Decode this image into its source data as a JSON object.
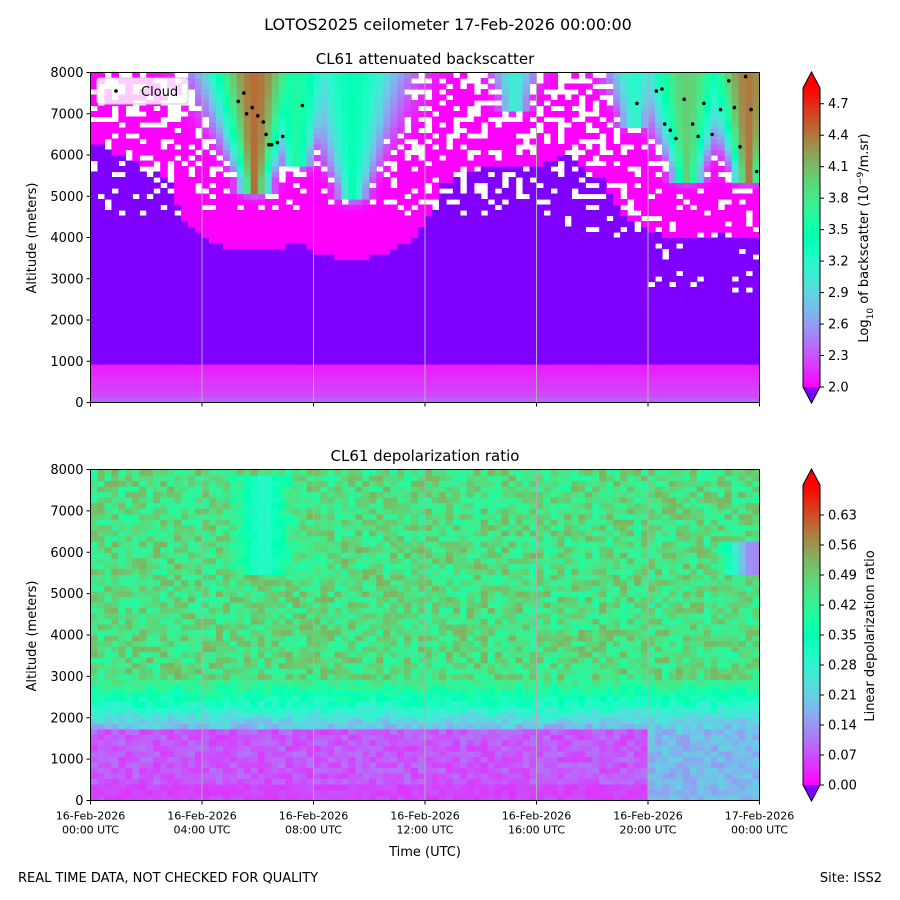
{
  "figure": {
    "suptitle": "LOTOS2025 ceilometer 17-Feb-2026 00:00:00",
    "footer_left": "REAL TIME DATA, NOT CHECKED FOR QUALITY",
    "footer_right": "Site: ISS2",
    "colormap": "rainbow",
    "under_color": "#8000ff",
    "over_color": "#ff0000"
  },
  "chart_data": [
    {
      "type": "heatmap",
      "title": "CL61 attenuated backscatter",
      "ylabel": "Altitude (meters)",
      "xlabel": "",
      "xlim": [
        0,
        24
      ],
      "ylim": [
        0,
        8000
      ],
      "y_ticks": [
        0,
        1000,
        2000,
        3000,
        4000,
        5000,
        6000,
        7000,
        8000
      ],
      "x_ticks": [
        {
          "value": 0,
          "line1": "16-Feb-2026",
          "line2": "00:00 UTC"
        },
        {
          "value": 4,
          "line1": "16-Feb-2026",
          "line2": "04:00 UTC"
        },
        {
          "value": 8,
          "line1": "16-Feb-2026",
          "line2": "08:00 UTC"
        },
        {
          "value": 12,
          "line1": "16-Feb-2026",
          "line2": "12:00 UTC"
        },
        {
          "value": 16,
          "line1": "16-Feb-2026",
          "line2": "16:00 UTC"
        },
        {
          "value": 20,
          "line1": "16-Feb-2026",
          "line2": "20:00 UTC"
        },
        {
          "value": 24,
          "line1": "17-Feb-2026",
          "line2": "00:00 UTC"
        }
      ],
      "show_x_tick_labels": false,
      "grid": "vertical lines at x ticks",
      "colorbar": {
        "label": "Log10 of backscatter (10^-9/m.sr)",
        "label_base": "Log",
        "label_sub": "10",
        "label_mid": " of backscatter (10",
        "label_sup": "−9",
        "label_end": "/m.sr)",
        "range": [
          2.0,
          4.85
        ],
        "ticks": [
          "2.0",
          "2.3",
          "2.6",
          "2.9",
          "3.2",
          "3.5",
          "3.8",
          "4.1",
          "4.4",
          "4.7"
        ],
        "extend": "both"
      },
      "legend": {
        "placement": "top-left",
        "entries": [
          "Cloud"
        ]
      },
      "field": {
        "surface_layer": {
          "top_m": 900,
          "value": 2.3
        },
        "aerosol_layer_range_m": [
          4500,
          6800
        ],
        "plumes": [
          {
            "time_h": 5.9,
            "base_m": 5400,
            "peak": 4.45
          },
          {
            "time_h": 7.4,
            "base_m": 6000,
            "peak": 3.6
          },
          {
            "time_h": 9.4,
            "base_m": 5200,
            "peak": 3.4
          },
          {
            "time_h": 15.2,
            "base_m": 7400,
            "peak": 3.1
          },
          {
            "time_h": 19.5,
            "base_m": 7000,
            "peak": 3.2
          },
          {
            "time_h": 21.4,
            "base_m": 5700,
            "peak": 4.0
          },
          {
            "time_h": 23.6,
            "base_m": 5700,
            "peak": 4.4
          }
        ]
      },
      "series": [
        {
          "name": "Cloud",
          "type": "scatter",
          "color": "#000000",
          "points": [
            [
              5.3,
              7300
            ],
            [
              5.5,
              7500
            ],
            [
              5.6,
              7000
            ],
            [
              5.8,
              7150
            ],
            [
              6.0,
              6950
            ],
            [
              6.2,
              6800
            ],
            [
              6.3,
              6500
            ],
            [
              6.4,
              6250
            ],
            [
              6.5,
              6250
            ],
            [
              6.7,
              6300
            ],
            [
              6.9,
              6450
            ],
            [
              7.6,
              7200
            ],
            [
              19.6,
              7250
            ],
            [
              20.3,
              7550
            ],
            [
              20.5,
              7600
            ],
            [
              20.6,
              6750
            ],
            [
              20.8,
              6600
            ],
            [
              21.0,
              6400
            ],
            [
              21.3,
              7350
            ],
            [
              21.6,
              6750
            ],
            [
              21.8,
              6450
            ],
            [
              22.0,
              7250
            ],
            [
              22.3,
              6500
            ],
            [
              22.6,
              7100
            ],
            [
              22.9,
              7800
            ],
            [
              23.1,
              7150
            ],
            [
              23.3,
              6200
            ],
            [
              23.5,
              7900
            ],
            [
              23.7,
              7100
            ],
            [
              23.9,
              5600
            ]
          ]
        }
      ]
    },
    {
      "type": "heatmap",
      "title": "CL61 depolarization ratio",
      "ylabel": "Altitude (meters)",
      "xlabel": "Time (UTC)",
      "xlim": [
        0,
        24
      ],
      "ylim": [
        0,
        8000
      ],
      "y_ticks": [
        0,
        1000,
        2000,
        3000,
        4000,
        5000,
        6000,
        7000,
        8000
      ],
      "x_ticks": [
        {
          "value": 0,
          "line1": "16-Feb-2026",
          "line2": "00:00 UTC"
        },
        {
          "value": 4,
          "line1": "16-Feb-2026",
          "line2": "04:00 UTC"
        },
        {
          "value": 8,
          "line1": "16-Feb-2026",
          "line2": "08:00 UTC"
        },
        {
          "value": 12,
          "line1": "16-Feb-2026",
          "line2": "12:00 UTC"
        },
        {
          "value": 16,
          "line1": "16-Feb-2026",
          "line2": "16:00 UTC"
        },
        {
          "value": 20,
          "line1": "16-Feb-2026",
          "line2": "20:00 UTC"
        },
        {
          "value": 24,
          "line1": "17-Feb-2026",
          "line2": "00:00 UTC"
        }
      ],
      "show_x_tick_labels": true,
      "grid": "vertical lines at x ticks",
      "colorbar": {
        "label": "Linear depolarization ratio",
        "range": [
          0.0,
          0.7
        ],
        "ticks": [
          "0.00",
          "0.07",
          "0.14",
          "0.21",
          "0.28",
          "0.35",
          "0.42",
          "0.49",
          "0.56",
          "0.63"
        ],
        "extend": "both"
      },
      "field": {
        "boundary_layer": {
          "top_m": 1750,
          "value": 0.08
        },
        "transition_top_m": 3000,
        "free_troposphere_mean": 0.46,
        "cloud_low_depol": [
          {
            "time_h": 6.2,
            "range_m": [
              5500,
              7800
            ],
            "value": 0.3
          },
          {
            "time_h": 23.8,
            "range_m": [
              5500,
              6200
            ],
            "value": 0.12
          }
        ]
      }
    }
  ]
}
